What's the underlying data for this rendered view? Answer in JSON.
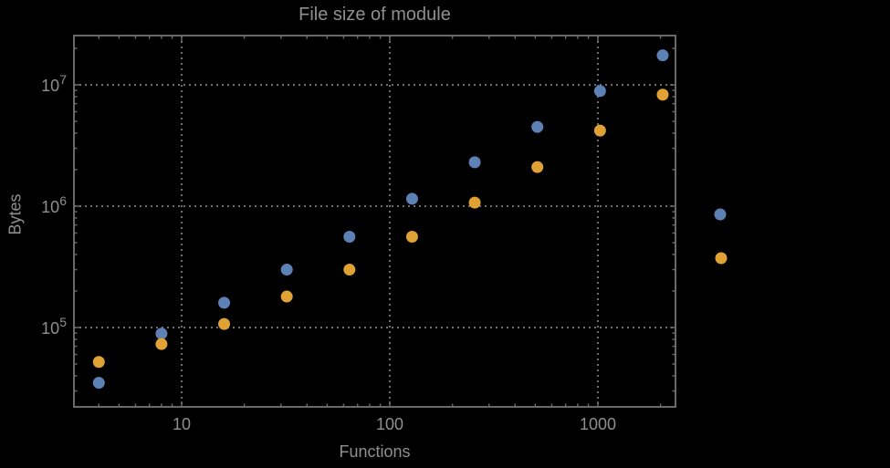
{
  "chart_data": {
    "type": "scatter",
    "title": "File size of module",
    "xlabel": "Functions",
    "ylabel": "Bytes",
    "x_scale": "log",
    "y_scale": "log",
    "x_range": [
      3,
      2300
    ],
    "y_range": [
      22000,
      26000000
    ],
    "grid": "dotted",
    "x": [
      4,
      8,
      16,
      32,
      64,
      128,
      256,
      512,
      1024,
      2048
    ],
    "series": [
      {
        "name": "series-blue",
        "color": "#5e81b5",
        "values": [
          35000,
          89000,
          160000,
          300000,
          560000,
          1150000,
          2300000,
          4500000,
          8900000,
          17500000
        ]
      },
      {
        "name": "series-orange",
        "color": "#e0a135",
        "values": [
          52000,
          73000,
          107000,
          180000,
          300000,
          560000,
          1070000,
          2100000,
          4200000,
          8300000
        ]
      }
    ],
    "x_ticks": [
      {
        "value": 10,
        "label": "10"
      },
      {
        "value": 100,
        "label": "100"
      },
      {
        "value": 1000,
        "label": "1000"
      }
    ],
    "y_ticks": [
      {
        "value": 100000,
        "mantissa": "10",
        "exponent": "5"
      },
      {
        "value": 1000000,
        "mantissa": "10",
        "exponent": "6"
      },
      {
        "value": 10000000,
        "mantissa": "10",
        "exponent": "7"
      }
    ],
    "legend": {
      "position": "right-center",
      "labels_visible": false,
      "markers": [
        {
          "series": "series-blue",
          "color": "#5e81b5"
        },
        {
          "series": "series-orange",
          "color": "#e0a135"
        }
      ]
    }
  },
  "styles": {
    "background": "#000000",
    "frame_color": "#696969",
    "grid_color": "#6e6e6e",
    "text_color": "#8f8f8f"
  }
}
